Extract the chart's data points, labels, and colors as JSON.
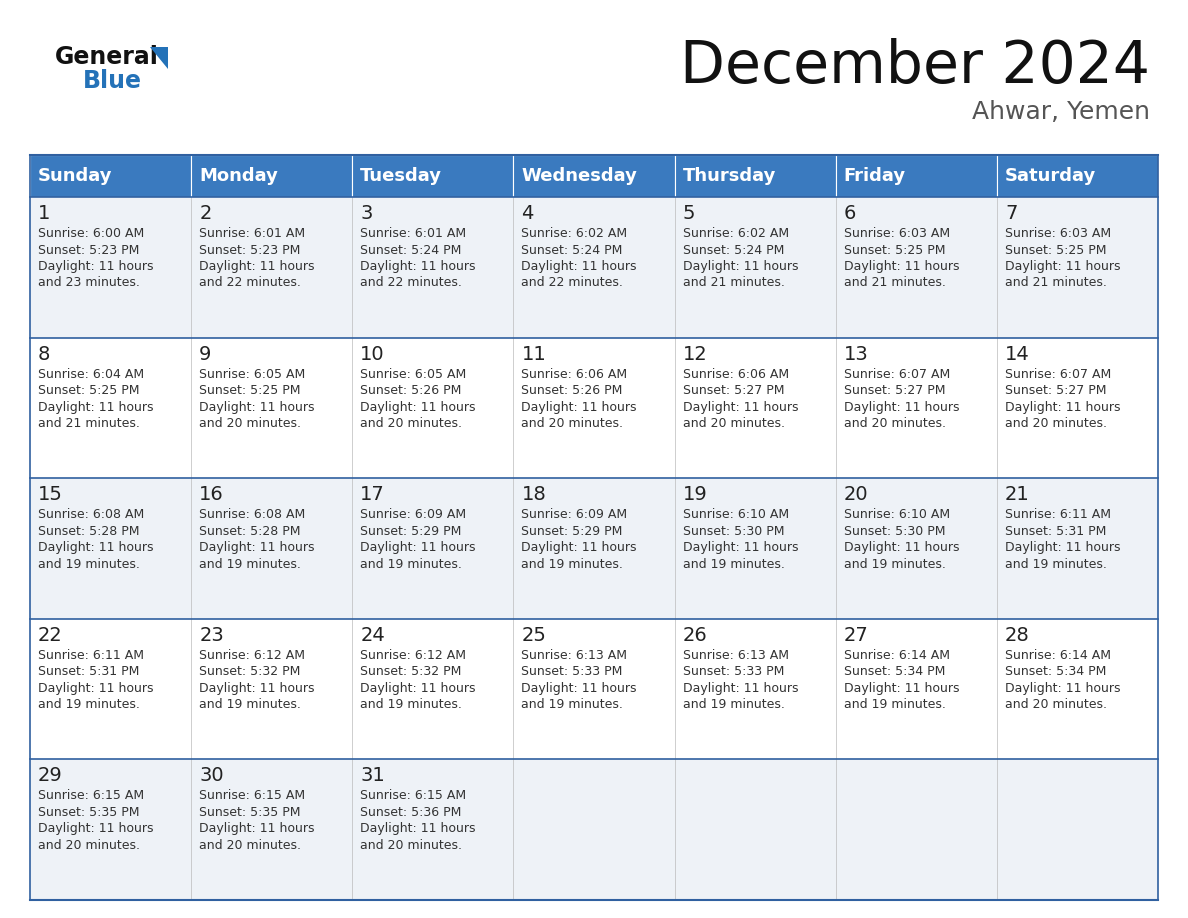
{
  "title": "December 2024",
  "subtitle": "Ahwar, Yemen",
  "days_of_week": [
    "Sunday",
    "Monday",
    "Tuesday",
    "Wednesday",
    "Thursday",
    "Friday",
    "Saturday"
  ],
  "header_bg": "#3a7abf",
  "header_text": "#ffffff",
  "cell_bg_odd": "#eef2f7",
  "cell_bg_even": "#ffffff",
  "day_number_color": "#222222",
  "text_color": "#333333",
  "border_color": "#3060a0",
  "title_color": "#111111",
  "subtitle_color": "#555555",
  "logo_general_color": "#111111",
  "logo_blue_color": "#2472b8",
  "calendar_data": [
    [
      {
        "day": 1,
        "sunrise": "6:00 AM",
        "sunset": "5:23 PM",
        "daylight_hours": 11,
        "daylight_minutes": 23
      },
      {
        "day": 2,
        "sunrise": "6:01 AM",
        "sunset": "5:23 PM",
        "daylight_hours": 11,
        "daylight_minutes": 22
      },
      {
        "day": 3,
        "sunrise": "6:01 AM",
        "sunset": "5:24 PM",
        "daylight_hours": 11,
        "daylight_minutes": 22
      },
      {
        "day": 4,
        "sunrise": "6:02 AM",
        "sunset": "5:24 PM",
        "daylight_hours": 11,
        "daylight_minutes": 22
      },
      {
        "day": 5,
        "sunrise": "6:02 AM",
        "sunset": "5:24 PM",
        "daylight_hours": 11,
        "daylight_minutes": 21
      },
      {
        "day": 6,
        "sunrise": "6:03 AM",
        "sunset": "5:25 PM",
        "daylight_hours": 11,
        "daylight_minutes": 21
      },
      {
        "day": 7,
        "sunrise": "6:03 AM",
        "sunset": "5:25 PM",
        "daylight_hours": 11,
        "daylight_minutes": 21
      }
    ],
    [
      {
        "day": 8,
        "sunrise": "6:04 AM",
        "sunset": "5:25 PM",
        "daylight_hours": 11,
        "daylight_minutes": 21
      },
      {
        "day": 9,
        "sunrise": "6:05 AM",
        "sunset": "5:25 PM",
        "daylight_hours": 11,
        "daylight_minutes": 20
      },
      {
        "day": 10,
        "sunrise": "6:05 AM",
        "sunset": "5:26 PM",
        "daylight_hours": 11,
        "daylight_minutes": 20
      },
      {
        "day": 11,
        "sunrise": "6:06 AM",
        "sunset": "5:26 PM",
        "daylight_hours": 11,
        "daylight_minutes": 20
      },
      {
        "day": 12,
        "sunrise": "6:06 AM",
        "sunset": "5:27 PM",
        "daylight_hours": 11,
        "daylight_minutes": 20
      },
      {
        "day": 13,
        "sunrise": "6:07 AM",
        "sunset": "5:27 PM",
        "daylight_hours": 11,
        "daylight_minutes": 20
      },
      {
        "day": 14,
        "sunrise": "6:07 AM",
        "sunset": "5:27 PM",
        "daylight_hours": 11,
        "daylight_minutes": 20
      }
    ],
    [
      {
        "day": 15,
        "sunrise": "6:08 AM",
        "sunset": "5:28 PM",
        "daylight_hours": 11,
        "daylight_minutes": 19
      },
      {
        "day": 16,
        "sunrise": "6:08 AM",
        "sunset": "5:28 PM",
        "daylight_hours": 11,
        "daylight_minutes": 19
      },
      {
        "day": 17,
        "sunrise": "6:09 AM",
        "sunset": "5:29 PM",
        "daylight_hours": 11,
        "daylight_minutes": 19
      },
      {
        "day": 18,
        "sunrise": "6:09 AM",
        "sunset": "5:29 PM",
        "daylight_hours": 11,
        "daylight_minutes": 19
      },
      {
        "day": 19,
        "sunrise": "6:10 AM",
        "sunset": "5:30 PM",
        "daylight_hours": 11,
        "daylight_minutes": 19
      },
      {
        "day": 20,
        "sunrise": "6:10 AM",
        "sunset": "5:30 PM",
        "daylight_hours": 11,
        "daylight_minutes": 19
      },
      {
        "day": 21,
        "sunrise": "6:11 AM",
        "sunset": "5:31 PM",
        "daylight_hours": 11,
        "daylight_minutes": 19
      }
    ],
    [
      {
        "day": 22,
        "sunrise": "6:11 AM",
        "sunset": "5:31 PM",
        "daylight_hours": 11,
        "daylight_minutes": 19
      },
      {
        "day": 23,
        "sunrise": "6:12 AM",
        "sunset": "5:32 PM",
        "daylight_hours": 11,
        "daylight_minutes": 19
      },
      {
        "day": 24,
        "sunrise": "6:12 AM",
        "sunset": "5:32 PM",
        "daylight_hours": 11,
        "daylight_minutes": 19
      },
      {
        "day": 25,
        "sunrise": "6:13 AM",
        "sunset": "5:33 PM",
        "daylight_hours": 11,
        "daylight_minutes": 19
      },
      {
        "day": 26,
        "sunrise": "6:13 AM",
        "sunset": "5:33 PM",
        "daylight_hours": 11,
        "daylight_minutes": 19
      },
      {
        "day": 27,
        "sunrise": "6:14 AM",
        "sunset": "5:34 PM",
        "daylight_hours": 11,
        "daylight_minutes": 19
      },
      {
        "day": 28,
        "sunrise": "6:14 AM",
        "sunset": "5:34 PM",
        "daylight_hours": 11,
        "daylight_minutes": 20
      }
    ],
    [
      {
        "day": 29,
        "sunrise": "6:15 AM",
        "sunset": "5:35 PM",
        "daylight_hours": 11,
        "daylight_minutes": 20
      },
      {
        "day": 30,
        "sunrise": "6:15 AM",
        "sunset": "5:35 PM",
        "daylight_hours": 11,
        "daylight_minutes": 20
      },
      {
        "day": 31,
        "sunrise": "6:15 AM",
        "sunset": "5:36 PM",
        "daylight_hours": 11,
        "daylight_minutes": 20
      },
      null,
      null,
      null,
      null
    ]
  ]
}
